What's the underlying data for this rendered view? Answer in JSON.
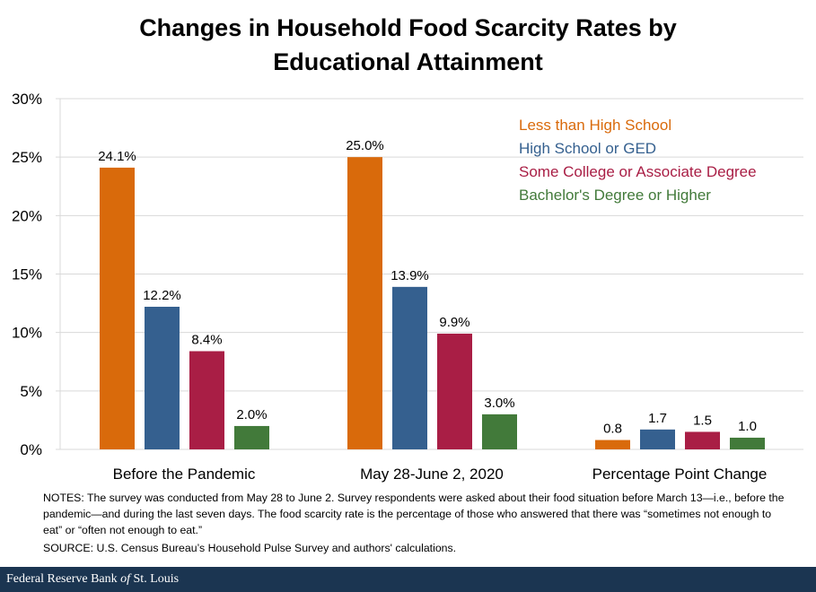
{
  "chart_data": {
    "type": "bar",
    "title": "Changes in Household Food Scarcity Rates by Educational Attainment",
    "title_lines": [
      "Changes in Household Food Scarcity Rates by",
      "Educational Attainment"
    ],
    "categories": [
      "Before the Pandemic",
      "May 28-June 2, 2020",
      "Percentage Point Change"
    ],
    "series": [
      {
        "name": "Less than High School",
        "color": "#D96A0B",
        "values": [
          24.1,
          25.0,
          0.8
        ],
        "labels": [
          "24.1%",
          "25.0%",
          "0.8"
        ]
      },
      {
        "name": "High School or GED",
        "color": "#35608F",
        "values": [
          12.2,
          13.9,
          1.7
        ],
        "labels": [
          "12.2%",
          "13.9%",
          "1.7"
        ]
      },
      {
        "name": "Some College or Associate Degree",
        "color": "#A91E45",
        "values": [
          8.4,
          9.9,
          1.5
        ],
        "labels": [
          "8.4%",
          "9.9%",
          "1.5"
        ]
      },
      {
        "name": "Bachelor's Degree or Higher",
        "color": "#427A3A",
        "values": [
          2.0,
          3.0,
          1.0
        ],
        "labels": [
          "2.0%",
          "3.0%",
          "1.0"
        ]
      }
    ],
    "ylim": [
      0,
      30
    ],
    "yticks": [
      0,
      5,
      10,
      15,
      20,
      25,
      30
    ],
    "ytick_labels": [
      "0%",
      "5%",
      "10%",
      "15%",
      "20%",
      "25%",
      "30%"
    ],
    "xlabel": "",
    "ylabel": "",
    "grid": true,
    "legend_position": "top-right"
  },
  "notes": "NOTES: The survey was conducted from May 28 to June 2. Survey respondents were asked about their food situation before March 13—i.e., before the pandemic—and during the last seven days. The food scarcity rate is the percentage of those who answered that there was “sometimes not enough to eat” or “often not enough to eat.”",
  "source": "SOURCE: U.S. Census Bureau’s Household Pulse Survey and authors' calculations.",
  "footer": {
    "pre": "Federal Reserve Bank ",
    "of": "of",
    "post": " St. Louis"
  }
}
